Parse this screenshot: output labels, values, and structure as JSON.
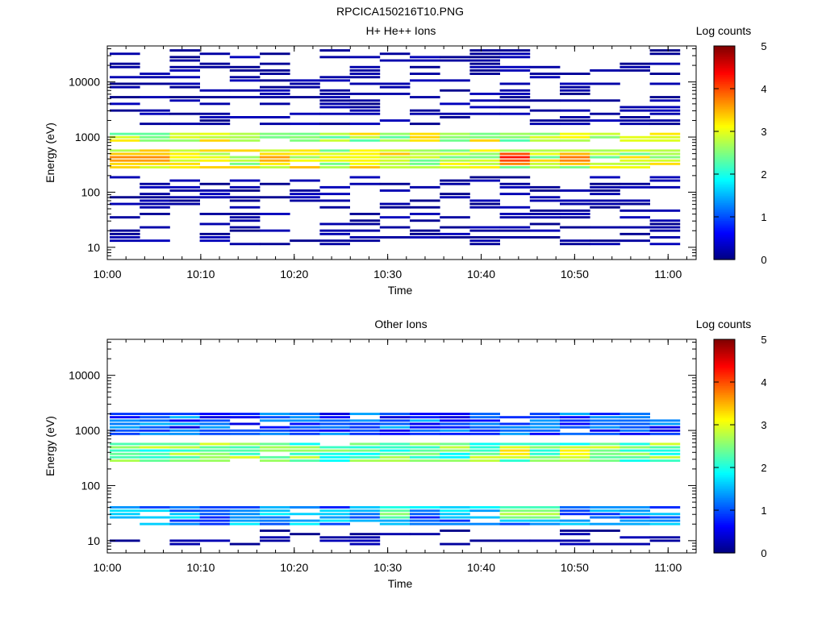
{
  "figure_title": "RPCICA150216T10.PNG",
  "chart_data": [
    {
      "type": "heatmap",
      "title": "H+ He++ Ions",
      "xlabel": "Time",
      "ylabel": "Energy (eV)",
      "x_ticks": [
        "10:00",
        "10:10",
        "10:20",
        "10:30",
        "10:40",
        "10:50",
        "11:00"
      ],
      "x_range": [
        "10:00",
        "11:03"
      ],
      "y_scale": "log",
      "y_ticks": [
        "10",
        "100",
        "1000",
        "10000"
      ],
      "y_range": [
        6,
        45000
      ],
      "colorbar": {
        "label": "Log counts",
        "ticks": [
          "0",
          "1",
          "2",
          "3",
          "4",
          "5"
        ],
        "range": [
          0,
          5
        ],
        "colormap": "jet"
      },
      "bands": [
        {
          "energy_range_eV": [
            750,
            1200
          ],
          "log_counts_typical": 2.8,
          "note": "persistent band near 1 keV, peaks ~3.4 near 10:00 and 11:00"
        },
        {
          "energy_range_eV": [
            250,
            600
          ],
          "log_counts_typical": 2.9,
          "note": "main H+ band ~400 eV, peaks ~4.3 at 10:43"
        },
        {
          "energy_range_eV": [
            1500,
            40000
          ],
          "log_counts_typical": 0.3,
          "note": "sporadic low-count lines"
        },
        {
          "energy_range_eV": [
            10,
            200
          ],
          "log_counts_typical": 0.2,
          "note": "sporadic low-count lines"
        }
      ],
      "peaks": [
        {
          "time": "10:04",
          "energy_eV": 400,
          "log_counts": 3.8
        },
        {
          "time": "10:18",
          "energy_eV": 400,
          "log_counts": 3.7
        },
        {
          "time": "10:43",
          "energy_eV": 420,
          "log_counts": 4.3
        },
        {
          "time": "10:50",
          "energy_eV": 400,
          "log_counts": 3.9
        }
      ]
    },
    {
      "type": "heatmap",
      "title": "Other Ions",
      "xlabel": "Time",
      "ylabel": "Energy (eV)",
      "x_ticks": [
        "10:00",
        "10:10",
        "10:20",
        "10:30",
        "10:40",
        "10:50",
        "11:00"
      ],
      "x_range": [
        "10:00",
        "11:03"
      ],
      "y_scale": "log",
      "y_ticks": [
        "10",
        "100",
        "1000",
        "10000"
      ],
      "y_range": [
        6,
        45000
      ],
      "colorbar": {
        "label": "Log counts",
        "ticks": [
          "0",
          "1",
          "2",
          "3",
          "4",
          "5"
        ],
        "range": [
          0,
          5
        ],
        "colormap": "jet"
      },
      "bands": [
        {
          "energy_range_eV": [
            250,
            600
          ],
          "log_counts_typical": 2.4,
          "note": "main band ~380 eV, peaks ~3.4 at 10:43 and 10:50"
        },
        {
          "energy_range_eV": [
            800,
            2200
          ],
          "log_counts_typical": 1.0,
          "note": "secondary band ~1 keV"
        },
        {
          "energy_range_eV": [
            18,
            45
          ],
          "log_counts_typical": 1.3,
          "note": "low-energy band, up to ~2.8 at 10:30 and 10:45"
        },
        {
          "energy_range_eV": [
            8,
            16
          ],
          "log_counts_typical": 0.1,
          "note": "sporadic blocks near bottom"
        }
      ],
      "peaks": [
        {
          "time": "10:43",
          "energy_eV": 400,
          "log_counts": 3.4
        },
        {
          "time": "10:50",
          "energy_eV": 400,
          "log_counts": 3.3
        },
        {
          "time": "10:30",
          "energy_eV": 30,
          "log_counts": 2.6
        },
        {
          "time": "10:45",
          "energy_eV": 30,
          "log_counts": 2.8
        }
      ]
    }
  ]
}
